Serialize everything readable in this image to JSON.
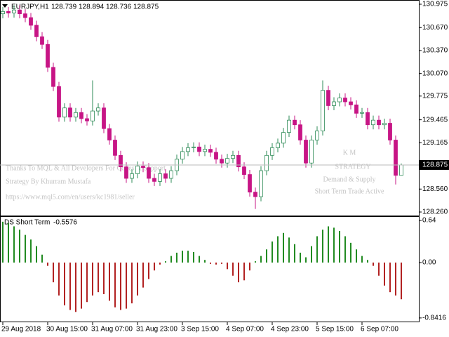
{
  "chart_data": [
    {
      "type": "candlestick",
      "symbol": "EURJPY,H1",
      "categories": [
        "29 Aug 2018",
        null,
        null,
        null,
        null,
        null,
        null,
        null,
        "30 Aug 15:00",
        null,
        null,
        null,
        null,
        null,
        null,
        null,
        "31 Aug 07:00",
        null,
        null,
        null,
        null,
        null,
        null,
        null,
        "31 Aug 23:00",
        null,
        null,
        null,
        null,
        null,
        null,
        null,
        "3 Sep 15:00",
        null,
        null,
        null,
        null,
        null,
        null,
        null,
        "4 Sep 07:00",
        null,
        null,
        null,
        null,
        null,
        null,
        null,
        "4 Sep 23:00",
        null,
        null,
        null,
        null,
        null,
        null,
        null,
        "5 Sep 15:00",
        null,
        null,
        null,
        null,
        null,
        null,
        null,
        "6 Sep 07:00",
        null,
        null,
        null,
        null,
        null,
        null,
        null
      ],
      "open": [
        130.85,
        130.88,
        130.86,
        130.9,
        130.85,
        130.8,
        130.7,
        130.55,
        130.45,
        130.15,
        129.9,
        129.5,
        129.62,
        129.5,
        129.56,
        129.48,
        129.45,
        129.58,
        129.62,
        129.35,
        129.2,
        129.0,
        128.85,
        128.7,
        128.76,
        128.86,
        128.84,
        128.7,
        128.66,
        128.76,
        128.7,
        128.8,
        128.95,
        129.05,
        129.1,
        129.11,
        129.05,
        129.08,
        129.04,
        128.95,
        128.9,
        128.96,
        129.0,
        128.85,
        128.75,
        128.52,
        128.46,
        128.8,
        129.0,
        129.1,
        129.16,
        129.3,
        129.46,
        129.4,
        129.2,
        128.9,
        129.2,
        129.32,
        129.85,
        129.65,
        129.7,
        129.75,
        129.7,
        129.66,
        129.55,
        129.56,
        129.4,
        129.46,
        129.4,
        129.42,
        129.2,
        128.739
      ],
      "high": [
        130.94,
        130.94,
        130.96,
        130.96,
        130.91,
        130.86,
        130.76,
        130.61,
        130.51,
        130.21,
        129.96,
        129.68,
        129.68,
        129.62,
        129.62,
        129.54,
        129.98,
        129.68,
        129.68,
        129.41,
        129.26,
        129.06,
        128.91,
        128.82,
        128.92,
        128.92,
        128.9,
        128.76,
        128.82,
        128.82,
        128.86,
        129.01,
        129.11,
        129.16,
        129.17,
        129.17,
        129.14,
        129.14,
        129.1,
        129.01,
        129.02,
        129.06,
        129.06,
        128.91,
        128.81,
        128.58,
        128.86,
        129.06,
        129.16,
        129.22,
        129.36,
        129.52,
        129.52,
        129.46,
        129.26,
        129.26,
        129.38,
        129.98,
        129.91,
        129.76,
        129.81,
        129.81,
        129.76,
        129.72,
        129.62,
        129.62,
        129.52,
        129.52,
        129.48,
        129.48,
        129.26,
        128.894
      ],
      "low": [
        130.79,
        130.8,
        130.8,
        130.79,
        130.74,
        130.64,
        130.49,
        130.39,
        130.09,
        129.84,
        129.44,
        129.44,
        129.44,
        129.44,
        129.42,
        129.39,
        129.39,
        129.52,
        129.29,
        129.14,
        128.94,
        128.79,
        128.64,
        128.64,
        128.7,
        128.78,
        128.64,
        128.6,
        128.6,
        128.64,
        128.64,
        128.74,
        128.89,
        128.99,
        129.04,
        128.99,
        128.99,
        128.98,
        128.89,
        128.84,
        128.84,
        128.9,
        128.79,
        128.69,
        128.46,
        128.3,
        128.4,
        128.74,
        128.94,
        129.04,
        129.1,
        129.24,
        129.34,
        129.14,
        128.84,
        128.84,
        129.14,
        129.26,
        129.59,
        129.59,
        129.64,
        129.64,
        129.6,
        129.49,
        129.49,
        129.34,
        129.34,
        129.34,
        129.34,
        129.14,
        128.62,
        128.736
      ],
      "close": [
        130.88,
        130.86,
        130.9,
        130.85,
        130.8,
        130.7,
        130.55,
        130.45,
        130.15,
        129.9,
        129.5,
        129.62,
        129.5,
        129.56,
        129.48,
        129.45,
        129.58,
        129.62,
        129.35,
        129.2,
        129.0,
        128.85,
        128.7,
        128.76,
        128.86,
        128.84,
        128.7,
        128.66,
        128.76,
        128.7,
        128.8,
        128.95,
        129.05,
        129.1,
        129.11,
        129.05,
        129.08,
        129.04,
        128.95,
        128.9,
        128.96,
        129.0,
        128.85,
        128.75,
        128.52,
        128.46,
        128.8,
        129.0,
        129.1,
        129.16,
        129.3,
        129.46,
        129.4,
        129.2,
        128.9,
        129.2,
        129.32,
        129.85,
        129.65,
        129.7,
        129.75,
        129.7,
        129.66,
        129.55,
        129.56,
        129.4,
        129.46,
        129.4,
        129.42,
        129.2,
        128.739,
        128.875
      ],
      "up_color": "#2e8b57",
      "down_color": "#c71585",
      "ylim": [
        128.214,
        131.021
      ],
      "yticks": [
        130.975,
        {
          "value": 130.67,
          "label": "130.670"
        },
        {
          "value": 130.37,
          "label": "130.370"
        },
        {
          "value": 130.07,
          "label": "130.070"
        },
        129.775,
        129.465,
        129.165,
        {
          "value": 128.56,
          "label": "128.560"
        },
        {
          "value": 128.26,
          "label": "128.260"
        }
      ],
      "current_price": 128.875,
      "annotations": [
        "Thanks To MQL & All Developers For Codes & Support",
        "Strategy By Khurram Mustafa",
        "https://www.mql5.com/en/users/kc1981/seller",
        "K M",
        "STRATEGY",
        "Demand & Supply",
        "Short Term Trade Active"
      ]
    },
    {
      "type": "bar",
      "name": "DS Short Term",
      "values": [
        0.62,
        0.6,
        0.55,
        0.5,
        0.42,
        0.35,
        0.25,
        0.12,
        -0.05,
        -0.3,
        -0.5,
        -0.65,
        -0.72,
        -0.75,
        -0.7,
        -0.6,
        -0.5,
        -0.45,
        -0.48,
        -0.58,
        -0.68,
        -0.72,
        -0.7,
        -0.62,
        -0.5,
        -0.38,
        -0.25,
        -0.12,
        -0.03,
        0.02,
        0.1,
        0.15,
        0.18,
        0.18,
        0.16,
        0.1,
        0.04,
        -0.02,
        -0.03,
        -0.02,
        -0.1,
        -0.2,
        -0.3,
        -0.27,
        -0.12,
        0.02,
        0.1,
        0.2,
        0.32,
        0.4,
        0.45,
        0.38,
        0.28,
        0.15,
        0.08,
        0.25,
        0.4,
        0.5,
        0.55,
        0.53,
        0.48,
        0.4,
        0.3,
        0.2,
        0.1,
        0.04,
        -0.05,
        -0.2,
        -0.35,
        -0.45,
        -0.5,
        -0.5576
      ],
      "up_color": "#228b22",
      "down_color": "#b22222",
      "ylim": [
        -0.875,
        0.693
      ],
      "yticks": [
        0.64,
        {
          "value": 0,
          "label": "0.00"
        },
        -0.8416
      ]
    }
  ]
}
